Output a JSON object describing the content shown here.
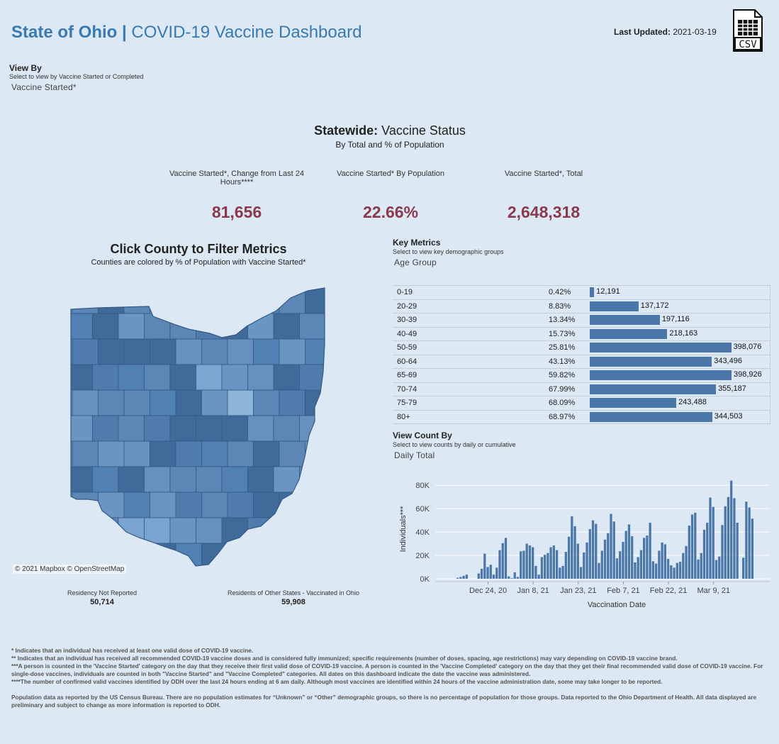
{
  "header": {
    "title_bold": "State of Ohio |",
    "title_rest": "COVID-19 Vaccine Dashboard",
    "last_updated_label": "Last Updated:",
    "last_updated_value": "2021-03-19",
    "csv_icon": "csv-download-icon",
    "csv_text": "CSV"
  },
  "view_by": {
    "label": "View By",
    "hint": "Select to view by Vaccine Started or Completed",
    "value": "Vaccine Started*"
  },
  "statewide": {
    "title_bold": "Statewide:",
    "title_rest": "Vaccine Status",
    "subtitle": "By Total and % of Population",
    "kpis": [
      {
        "label": "Vaccine Started*, Change from Last 24 Hours****",
        "value": "81,656"
      },
      {
        "label": "Vaccine Started* By Population",
        "value": "22.66%"
      },
      {
        "label": "Vaccine Started*, Total",
        "value": "2,648,318"
      }
    ]
  },
  "map": {
    "title": "Click County to Filter Metrics",
    "subtitle": "Counties are colored by % of Population with Vaccine Started*",
    "attribution": "© 2021 Mapbox © OpenStreetMap",
    "colors": {
      "base": "#5b86b6",
      "light": "#8cb4d8",
      "dark": "#3f6a99",
      "border": "#345a85"
    }
  },
  "residency": [
    {
      "label": "Residency Not Reported",
      "value": "50,714"
    },
    {
      "label": "Residents of Other States - Vaccinated in Ohio",
      "value": "59,908"
    }
  ],
  "key_metrics": {
    "label": "Key Metrics",
    "hint": "Select to view key demographic groups",
    "value": "Age Group",
    "max": 398926,
    "rows": [
      {
        "group": "0-19",
        "pct": "0.42%",
        "count": 12191,
        "count_label": "12,191"
      },
      {
        "group": "20-29",
        "pct": "8.83%",
        "count": 137172,
        "count_label": "137,172"
      },
      {
        "group": "30-39",
        "pct": "13.34%",
        "count": 197116,
        "count_label": "197,116"
      },
      {
        "group": "40-49",
        "pct": "15.73%",
        "count": 218163,
        "count_label": "218,163"
      },
      {
        "group": "50-59",
        "pct": "25.81%",
        "count": 398076,
        "count_label": "398,076"
      },
      {
        "group": "60-64",
        "pct": "43.13%",
        "count": 343496,
        "count_label": "343,496"
      },
      {
        "group": "65-69",
        "pct": "59.82%",
        "count": 398926,
        "count_label": "398,926"
      },
      {
        "group": "70-74",
        "pct": "67.99%",
        "count": 355187,
        "count_label": "355,187"
      },
      {
        "group": "75-79",
        "pct": "68.09%",
        "count": 243488,
        "count_label": "243,488"
      },
      {
        "group": "80+",
        "pct": "68.97%",
        "count": 344503,
        "count_label": "344,503"
      }
    ]
  },
  "view_count": {
    "label": "View Count By",
    "hint": "Select to view counts by daily or cumulative",
    "value": "Daily Total"
  },
  "chart_data": {
    "type": "bar",
    "xlabel": "Vaccination Date",
    "ylabel": "Individuals***",
    "ylim": [
      0,
      85000
    ],
    "yticks": [
      0,
      20000,
      40000,
      60000,
      80000
    ],
    "ytick_labels": [
      "0K",
      "20K",
      "40K",
      "60K",
      "80K"
    ],
    "xtick_labels": [
      "Dec 24, 20",
      "Jan 8, 21",
      "Jan 23, 21",
      "Feb 7, 21",
      "Feb 22, 21",
      "Mar 9, 21"
    ],
    "xtick_dates": [
      "2020-12-24",
      "2021-01-08",
      "2021-01-23",
      "2021-02-07",
      "2021-02-22",
      "2021-03-09"
    ],
    "color": "#4a76a8",
    "grid": true,
    "start_date": "2020-12-14",
    "values": [
      800,
      1500,
      2500,
      3500,
      0,
      0,
      0,
      4500,
      8500,
      21500,
      10000,
      12000,
      3500,
      9500,
      24500,
      30500,
      35000,
      2000,
      500,
      5500,
      1500,
      23500,
      24000,
      30000,
      28500,
      27000,
      11000,
      3500,
      18500,
      20500,
      22000,
      27000,
      28500,
      24500,
      9500,
      11000,
      23000,
      36000,
      53500,
      45000,
      30000,
      10000,
      22500,
      31000,
      42500,
      50000,
      47000,
      13500,
      24000,
      33500,
      39000,
      55500,
      49000,
      17500,
      23500,
      31500,
      41000,
      46500,
      36500,
      14000,
      18500,
      24500,
      35000,
      37000,
      48000,
      15000,
      13000,
      24000,
      31000,
      29500,
      17000,
      11500,
      9500,
      13500,
      14500,
      22000,
      28000,
      45500,
      55000,
      56500,
      16500,
      22000,
      42000,
      48000,
      69500,
      61500,
      16000,
      19000,
      46000,
      62000,
      70000,
      84000,
      69000,
      48000,
      0,
      18000,
      66000,
      61000,
      51500
    ]
  },
  "footnotes": [
    "* Indicates that an individual has received at least one valid dose of COVID-19 vaccine.",
    "** Indicates that an individual has received all recommended COVID-19 vaccine doses and is considered fully immunized; specific requirements (number of doses, spacing, age restrictions) may vary depending on COVID-19 vaccine brand.",
    "***A person is counted in the 'Vaccine Started' category on the day that they receive their first valid dose of COVID-19 vaccine.  A person is counted in the 'Vaccine Completed' category on the day that they get their final recommended valid dose of COVID-19 vaccine. For single-dose vaccines, individuals are counted in both \"Vaccine Started\" and \"Vaccine Completed\" categories. All dates on this dashboard indicate the date the vaccine was administered.",
    "****The number of confirmed valid vaccines identified by ODH over the last 24 hours ending at 6 am daily. Although most vaccines are identified within 24 hours of the vaccine administration date, some may take longer to be reported."
  ],
  "disclaimer": "Population data as reported by the US Census Bureau. There are no population estimates for “Unknown” or “Other” demographic groups, so there is no percentage of population for those groups.  Data reported to the Ohio Department of Health.  All data displayed are preliminary and subject to change as more information is reported to ODH."
}
